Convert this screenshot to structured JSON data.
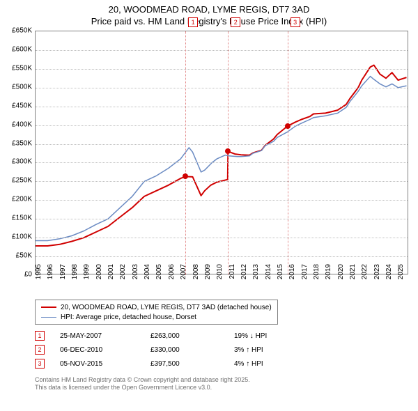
{
  "chart": {
    "type": "line",
    "title_line1": "20, WOODMEAD ROAD, LYME REGIS, DT7 3AD",
    "title_line2": "Price paid vs. HM Land Registry's House Price Index (HPI)",
    "x": {
      "min": 1995,
      "max": 2025.9,
      "ticks": [
        1995,
        1996,
        1997,
        1998,
        1999,
        2000,
        2001,
        2002,
        2003,
        2004,
        2005,
        2006,
        2007,
        2008,
        2009,
        2010,
        2011,
        2012,
        2013,
        2014,
        2015,
        2016,
        2017,
        2018,
        2019,
        2020,
        2021,
        2022,
        2023,
        2024,
        2025
      ]
    },
    "y": {
      "min": 0,
      "max": 650000,
      "ticks": [
        0,
        50000,
        100000,
        150000,
        200000,
        250000,
        300000,
        350000,
        400000,
        450000,
        500000,
        550000,
        600000,
        650000
      ],
      "labels": [
        "£0",
        "£50K",
        "£100K",
        "£150K",
        "£200K",
        "£250K",
        "£300K",
        "£350K",
        "£400K",
        "£450K",
        "£500K",
        "£550K",
        "£600K",
        "£650K"
      ]
    },
    "grid_color": "#bfbfbf",
    "background": "#ffffff",
    "series": [
      {
        "id": "subject",
        "label": "20, WOODMEAD ROAD, LYME REGIS, DT7 3AD (detached house)",
        "color": "#d00000",
        "width": 2,
        "data": [
          [
            1995.0,
            78000
          ],
          [
            1996.0,
            78000
          ],
          [
            1997.0,
            82000
          ],
          [
            1998.0,
            90000
          ],
          [
            1999.0,
            100000
          ],
          [
            2000.0,
            115000
          ],
          [
            2001.0,
            130000
          ],
          [
            2002.0,
            155000
          ],
          [
            2003.0,
            180000
          ],
          [
            2004.0,
            210000
          ],
          [
            2005.0,
            225000
          ],
          [
            2006.0,
            240000
          ],
          [
            2007.0,
            258000
          ],
          [
            2007.4,
            263000
          ],
          [
            2008.0,
            262000
          ],
          [
            2008.7,
            212000
          ],
          [
            2009.0,
            225000
          ],
          [
            2009.5,
            240000
          ],
          [
            2010.0,
            248000
          ],
          [
            2010.9,
            255000
          ],
          [
            2010.93,
            330000
          ],
          [
            2011.5,
            323000
          ],
          [
            2012.0,
            321000
          ],
          [
            2012.7,
            320000
          ],
          [
            2013.0,
            326000
          ],
          [
            2013.7,
            333000
          ],
          [
            2014.0,
            346000
          ],
          [
            2014.7,
            363000
          ],
          [
            2015.0,
            375000
          ],
          [
            2015.85,
            397500
          ],
          [
            2016.5,
            408000
          ],
          [
            2017.0,
            415000
          ],
          [
            2017.7,
            423000
          ],
          [
            2018.0,
            430000
          ],
          [
            2019.0,
            432000
          ],
          [
            2020.0,
            440000
          ],
          [
            2020.7,
            455000
          ],
          [
            2021.0,
            470000
          ],
          [
            2021.7,
            500000
          ],
          [
            2022.0,
            520000
          ],
          [
            2022.7,
            555000
          ],
          [
            2023.0,
            560000
          ],
          [
            2023.5,
            536000
          ],
          [
            2024.0,
            525000
          ],
          [
            2024.5,
            540000
          ],
          [
            2025.0,
            520000
          ],
          [
            2025.7,
            527000
          ]
        ]
      },
      {
        "id": "hpi",
        "label": "HPI: Average price, detached house, Dorset",
        "color": "#6b8bc3",
        "width": 1.5,
        "data": [
          [
            1995.0,
            92000
          ],
          [
            1996.0,
            92000
          ],
          [
            1997.0,
            97000
          ],
          [
            1998.0,
            105000
          ],
          [
            1999.0,
            118000
          ],
          [
            2000.0,
            135000
          ],
          [
            2001.0,
            150000
          ],
          [
            2002.0,
            180000
          ],
          [
            2003.0,
            210000
          ],
          [
            2004.0,
            250000
          ],
          [
            2005.0,
            265000
          ],
          [
            2006.0,
            285000
          ],
          [
            2007.0,
            310000
          ],
          [
            2007.7,
            340000
          ],
          [
            2008.0,
            328000
          ],
          [
            2008.7,
            275000
          ],
          [
            2009.0,
            280000
          ],
          [
            2009.6,
            300000
          ],
          [
            2010.0,
            310000
          ],
          [
            2010.7,
            320000
          ],
          [
            2011.0,
            318000
          ],
          [
            2011.7,
            316000
          ],
          [
            2012.0,
            316000
          ],
          [
            2012.7,
            318000
          ],
          [
            2013.0,
            325000
          ],
          [
            2013.7,
            332000
          ],
          [
            2014.0,
            345000
          ],
          [
            2014.7,
            357000
          ],
          [
            2015.0,
            367000
          ],
          [
            2015.85,
            382000
          ],
          [
            2016.5,
            397000
          ],
          [
            2017.0,
            405000
          ],
          [
            2017.7,
            415000
          ],
          [
            2018.0,
            420000
          ],
          [
            2019.0,
            425000
          ],
          [
            2020.0,
            432000
          ],
          [
            2020.7,
            447000
          ],
          [
            2021.0,
            462000
          ],
          [
            2021.7,
            490000
          ],
          [
            2022.0,
            505000
          ],
          [
            2022.7,
            530000
          ],
          [
            2023.0,
            522000
          ],
          [
            2023.5,
            510000
          ],
          [
            2024.0,
            502000
          ],
          [
            2024.5,
            510000
          ],
          [
            2025.0,
            500000
          ],
          [
            2025.7,
            505000
          ]
        ]
      }
    ],
    "markers": [
      {
        "n": "1",
        "x": 2007.4,
        "y": 263000,
        "date": "25-MAY-2007",
        "price": "£263,000",
        "compare": "19% ↓ HPI"
      },
      {
        "n": "2",
        "x": 2010.93,
        "y": 330000,
        "date": "06-DEC-2010",
        "price": "£330,000",
        "compare": "3% ↑ HPI"
      },
      {
        "n": "3",
        "x": 2015.85,
        "y": 397500,
        "date": "05-NOV-2015",
        "price": "£397,500",
        "compare": "4% ↑ HPI"
      }
    ]
  },
  "footer": {
    "line1": "Contains HM Land Registry data © Crown copyright and database right 2025.",
    "line2": "This data is licensed under the Open Government Licence v3.0."
  }
}
